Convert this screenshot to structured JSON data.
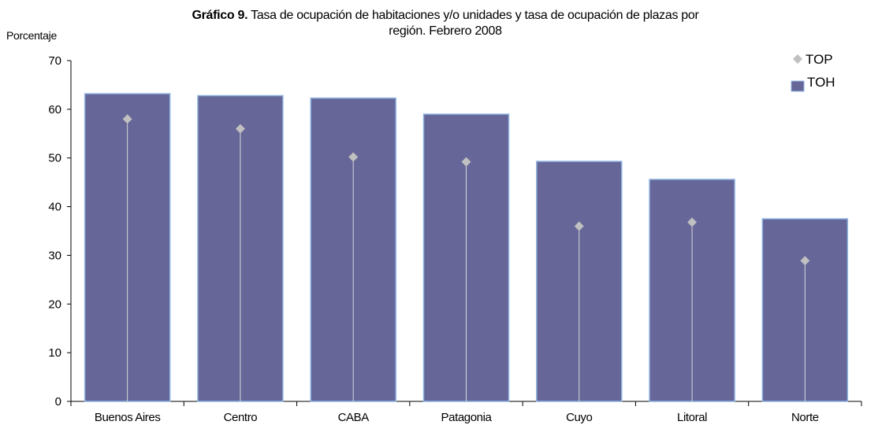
{
  "chart_data": {
    "type": "bar",
    "title_bold": "Gráfico 9.",
    "title_rest": " Tasa de ocupación de habitaciones y/o unidades y tasa de ocupación de plazas por",
    "title_line2": "región. Febrero 2008",
    "ylabel": "Porcentaje",
    "ylim": [
      0,
      70
    ],
    "yticks": [
      "0",
      "10",
      "20",
      "30",
      "40",
      "50",
      "60",
      "70"
    ],
    "categories": [
      "Buenos Aires",
      "Centro",
      "CABA",
      "Patagonia",
      "Cuyo",
      "Litoral",
      "Norte"
    ],
    "series": [
      {
        "name": "TOH",
        "kind": "bar",
        "color": "#666699",
        "values": [
          63.2,
          62.8,
          62.3,
          59.0,
          49.3,
          45.6,
          37.5
        ]
      },
      {
        "name": "TOP",
        "kind": "marker",
        "color": "#c0c0c0",
        "values": [
          58.0,
          56.0,
          50.2,
          49.2,
          36.0,
          36.8,
          28.9
        ]
      }
    ],
    "legend_position": "top-right",
    "grid": false
  }
}
